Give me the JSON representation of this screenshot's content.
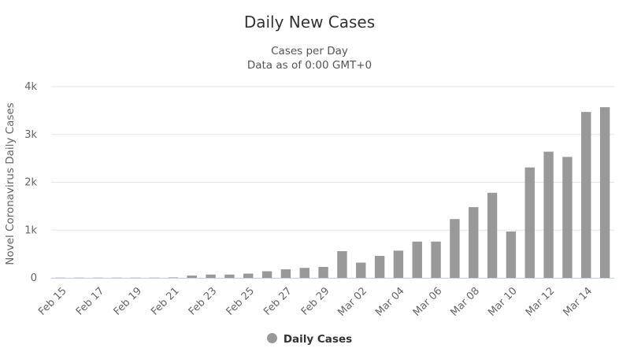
{
  "title": "Daily New Cases",
  "subtitle_line1": "Cases per Day",
  "subtitle_line2": "Data as of 0:00 GMT+0",
  "colors": {
    "bar": "#999999",
    "grid": "#e6e6e6",
    "axis_text": "#666666"
  },
  "chart_data": {
    "type": "bar",
    "ylabel": "Novel Coronavirus Daily Cases",
    "xlabel": "",
    "ylim": [
      0,
      4000
    ],
    "yticks": [
      0,
      1000,
      2000,
      3000,
      4000
    ],
    "ytick_labels": [
      "0",
      "1k",
      "2k",
      "3k",
      "4k"
    ],
    "grid": true,
    "legend_position": "bottom-center",
    "categories": [
      "Feb 15",
      "Feb 16",
      "Feb 17",
      "Feb 18",
      "Feb 19",
      "Feb 20",
      "Feb 21",
      "Feb 22",
      "Feb 23",
      "Feb 24",
      "Feb 25",
      "Feb 26",
      "Feb 27",
      "Feb 28",
      "Feb 29",
      "Mar 01",
      "Mar 02",
      "Mar 03",
      "Mar 04",
      "Mar 05",
      "Mar 06",
      "Mar 07",
      "Mar 08",
      "Mar 09",
      "Mar 10",
      "Mar 11",
      "Mar 12",
      "Mar 13",
      "Mar 14",
      "Mar 15"
    ],
    "xtick_labels": [
      "Feb 15",
      "Feb 17",
      "Feb 19",
      "Feb 21",
      "Feb 23",
      "Feb 25",
      "Feb 27",
      "Feb 29",
      "Mar 02",
      "Mar 04",
      "Mar 06",
      "Mar 08",
      "Mar 10",
      "Mar 12",
      "Mar 14"
    ],
    "series": [
      {
        "name": "Daily Cases",
        "values": [
          5,
          5,
          5,
          5,
          5,
          5,
          10,
          50,
          70,
          70,
          90,
          140,
          180,
          210,
          230,
          560,
          320,
          460,
          570,
          760,
          760,
          1230,
          1480,
          1780,
          970,
          2310,
          2640,
          2530,
          3470,
          3570
        ]
      }
    ]
  }
}
